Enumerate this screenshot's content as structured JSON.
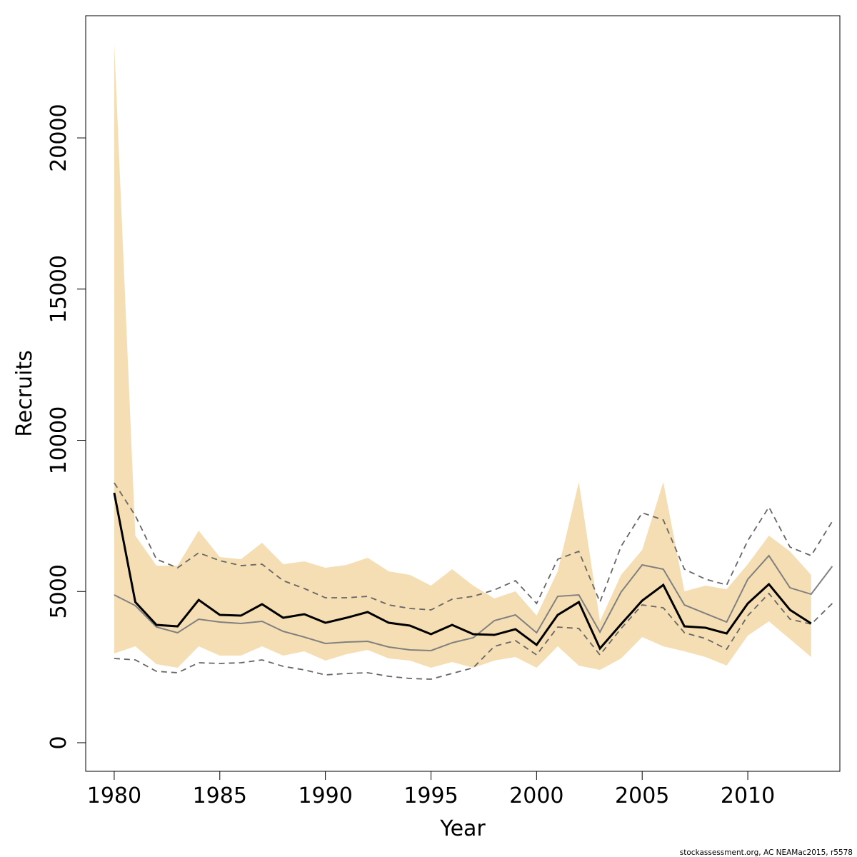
{
  "chart_data": {
    "type": "line",
    "xlabel": "Year",
    "ylabel": "Recruits",
    "footnote": "stockassessment.org, AC NEAMac2015, r5578",
    "x": [
      1980,
      1981,
      1982,
      1983,
      1984,
      1985,
      1986,
      1987,
      1988,
      1989,
      1990,
      1991,
      1992,
      1993,
      1994,
      1995,
      1996,
      1997,
      1998,
      1999,
      2000,
      2001,
      2002,
      2003,
      2004,
      2005,
      2006,
      2007,
      2008,
      2009,
      2010,
      2011,
      2012,
      2013,
      2014
    ],
    "xlim": [
      1978.65,
      2014.36
    ],
    "xticks": [
      1980,
      1985,
      1990,
      1995,
      2000,
      2005,
      2010
    ],
    "ylim": [
      -945,
      24040
    ],
    "yticks": [
      0,
      5000,
      10000,
      15000,
      20000
    ],
    "grid": false,
    "band": {
      "color": "#f5deb3",
      "upper": [
        23140,
        6847,
        5855,
        5855,
        7012,
        6139,
        6068,
        6611,
        5903,
        5997,
        5784,
        5879,
        6115,
        5666,
        5548,
        5194,
        5737,
        5194,
        4769,
        5005,
        4202,
        5666,
        8618,
        4014,
        5548,
        6375,
        8618,
        5005,
        5194,
        5076,
        5903,
        6847,
        6327,
        5548,
        null
      ],
      "lower": [
        2951,
        3187,
        2597,
        2479,
        3187,
        2880,
        2880,
        3187,
        2880,
        3022,
        2715,
        2928,
        3069,
        2786,
        2715,
        2479,
        2668,
        2479,
        2715,
        2833,
        2479,
        3187,
        2550,
        2408,
        2786,
        3494,
        3187,
        3022,
        2833,
        2550,
        3542,
        4014,
        3423,
        2833,
        null
      ]
    },
    "series": [
      {
        "color": "#808080",
        "width": 2,
        "dash": false,
        "values": [
          4887,
          4533,
          3825,
          3636,
          4085,
          3990,
          3943,
          4014,
          3683,
          3494,
          3282,
          3329,
          3353,
          3164,
          3069,
          3046,
          3305,
          3471,
          4037,
          4226,
          3636,
          4840,
          4887,
          3660,
          4982,
          5879,
          5737,
          4557,
          4273,
          3990,
          5407,
          6186,
          5123,
          4911,
          5832
        ]
      },
      {
        "color": "#666666",
        "width": 1.8,
        "dash": true,
        "values": [
          8594,
          7508,
          6068,
          5784,
          6280,
          6021,
          5855,
          5903,
          5359,
          5100,
          4793,
          4793,
          4840,
          4557,
          4439,
          4392,
          4746,
          4840,
          5052,
          5359,
          4604,
          6068,
          6327,
          4651,
          6493,
          7602,
          7366,
          5737,
          5407,
          5218,
          6682,
          7791,
          6469,
          6186,
          7319
        ]
      },
      {
        "color": "#666666",
        "width": 1.8,
        "dash": true,
        "values": [
          2786,
          2739,
          2361,
          2314,
          2644,
          2621,
          2644,
          2739,
          2526,
          2408,
          2243,
          2290,
          2314,
          2196,
          2125,
          2101,
          2290,
          2479,
          3187,
          3376,
          2904,
          3825,
          3778,
          2904,
          3778,
          4557,
          4462,
          3636,
          3447,
          3093,
          4202,
          4935,
          4085,
          3919,
          4604
        ]
      },
      {
        "color": "#000000",
        "width": 3,
        "dash": false,
        "values": [
          8264,
          4651,
          3896,
          3848,
          4722,
          4226,
          4202,
          4580,
          4132,
          4250,
          3966,
          4132,
          4321,
          3966,
          3872,
          3589,
          3896,
          3589,
          3565,
          3754,
          3235,
          4226,
          4651,
          3117,
          3919,
          4698,
          5218,
          3848,
          3801,
          3612,
          4604,
          5241,
          4392,
          3943,
          null
        ]
      }
    ]
  }
}
